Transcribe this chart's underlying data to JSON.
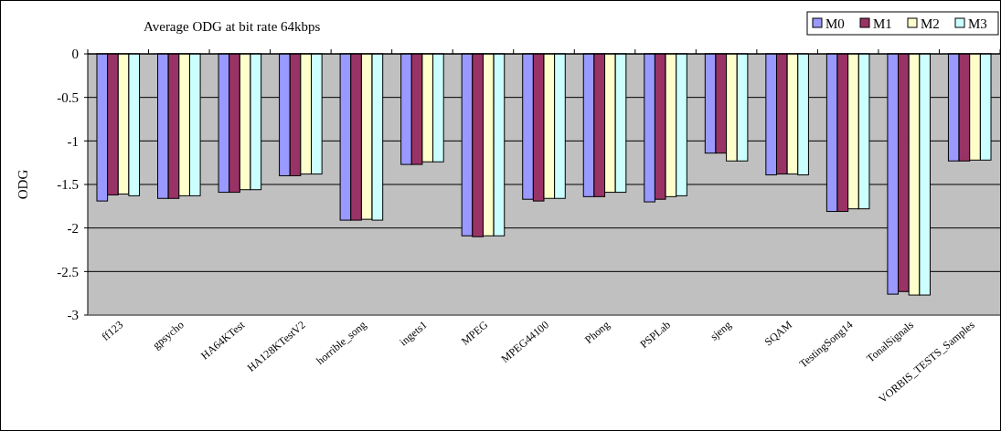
{
  "chart_data": {
    "type": "bar",
    "title": "Average ODG at bit rate 64kbps",
    "ylabel": "ODG",
    "categories": [
      "ff123",
      "gpsycho",
      "HA64KTest",
      "HA128KTestV2",
      "horrible_song",
      "ingets1",
      "MPEG",
      "MPEG44100",
      "Phong",
      "PSPLab",
      "sjeng",
      "SQAM",
      "TestingSong14",
      "TonalSignals",
      "VORBIS_TESTS_Samples"
    ],
    "series": [
      {
        "name": "M0",
        "color": "#9999ff",
        "values": [
          -1.69,
          -1.66,
          -1.59,
          -1.4,
          -1.91,
          -1.27,
          -2.09,
          -1.67,
          -1.64,
          -1.7,
          -1.14,
          -1.39,
          -1.81,
          -2.76,
          -1.23
        ]
      },
      {
        "name": "M1",
        "color": "#993366",
        "values": [
          -1.62,
          -1.66,
          -1.59,
          -1.4,
          -1.91,
          -1.27,
          -2.1,
          -1.69,
          -1.64,
          -1.67,
          -1.14,
          -1.38,
          -1.81,
          -2.73,
          -1.23
        ]
      },
      {
        "name": "M2",
        "color": "#ffffcc",
        "values": [
          -1.61,
          -1.63,
          -1.56,
          -1.38,
          -1.9,
          -1.24,
          -2.09,
          -1.66,
          -1.59,
          -1.64,
          -1.23,
          -1.38,
          -1.78,
          -2.77,
          -1.22
        ]
      },
      {
        "name": "M3",
        "color": "#ccffff",
        "values": [
          -1.63,
          -1.63,
          -1.56,
          -1.38,
          -1.91,
          -1.24,
          -2.09,
          -1.66,
          -1.59,
          -1.63,
          -1.23,
          -1.39,
          -1.78,
          -2.77,
          -1.22
        ]
      }
    ],
    "ylim": [
      -3,
      0
    ],
    "yticks": [
      0,
      -0.5,
      -1,
      -1.5,
      -2,
      -2.5,
      -3
    ],
    "grid": "y",
    "legend": "top right"
  }
}
